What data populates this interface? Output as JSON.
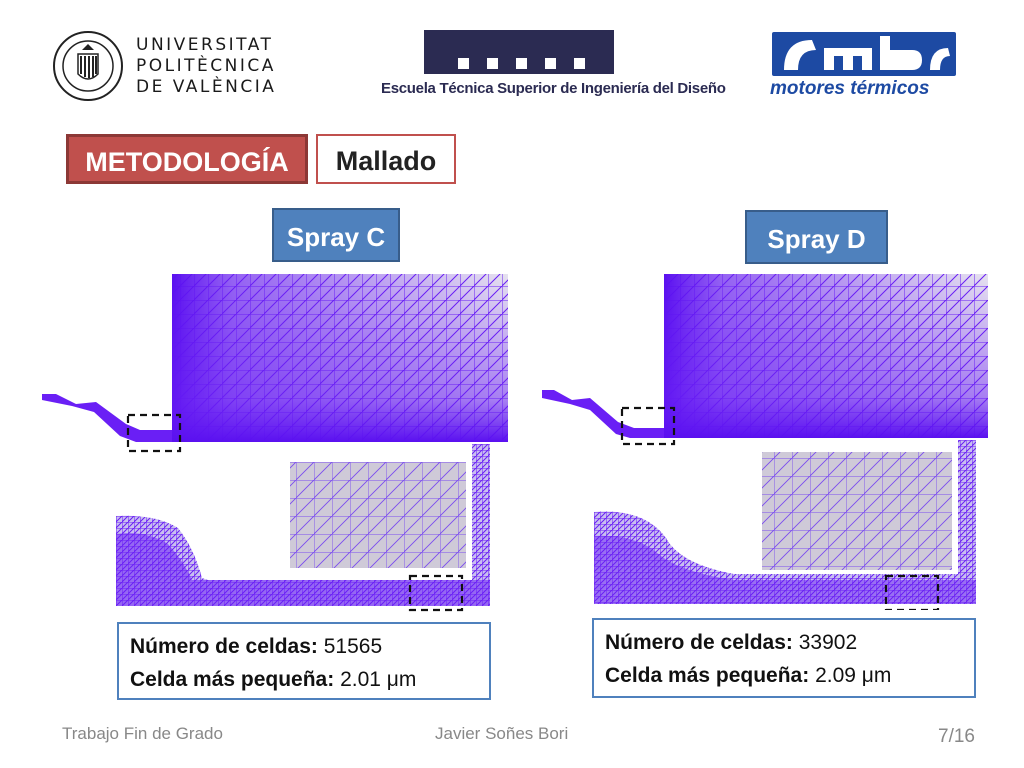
{
  "header": {
    "upv": {
      "line1": "UNIVERSITAT",
      "line2": "POLITÈCNICA",
      "line3": "DE VALÈNCIA"
    },
    "etsid": "Escuela Técnica Superior de Ingeniería del Diseño",
    "cmt": "motores térmicos"
  },
  "tags": {
    "section": "METODOLOGÍA",
    "topic": "Mallado"
  },
  "panels": [
    {
      "title": "Spray C",
      "cells_label": "Número de celdas:",
      "cells_value": "51565",
      "min_label": "Celda más pequeña:",
      "min_value": "2.01 μm"
    },
    {
      "title": "Spray D",
      "cells_label": "Número de celdas:",
      "cells_value": "33902",
      "min_label": "Celda más pequeña:",
      "min_value": "2.09 μm"
    }
  ],
  "footer": {
    "left": "Trabajo Fin de Grado",
    "center": "Javier Soñes Bori",
    "page": "7/16"
  },
  "colors": {
    "mesh": "#6a1ff5",
    "tag_red": "#c0504d",
    "tag_blue": "#4f81bd"
  }
}
